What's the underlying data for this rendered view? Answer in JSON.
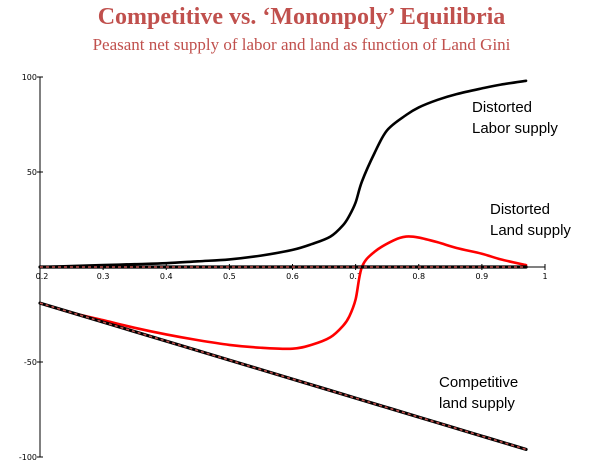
{
  "chart_data": {
    "type": "line",
    "title": "Competitive vs. ‘Mononpoly’ Equilibria",
    "subtitle": "Peasant net supply of labor and land as function of Land Gini",
    "xlabel": "",
    "ylabel": "",
    "xlim": [
      0.2,
      1.0
    ],
    "ylim": [
      -100,
      100
    ],
    "x_ticks": [
      "0.2",
      "0.3",
      "0.4",
      "0.5",
      "0.6",
      "0.7",
      "0.8",
      "0.9",
      "1"
    ],
    "y_ticks": [
      "100",
      "50",
      "-50",
      "-100"
    ],
    "grid": false,
    "legend": "none",
    "series": [
      {
        "id": "distorted-labor",
        "color": "#000000",
        "style": "solid",
        "x": [
          0.2,
          0.25,
          0.3,
          0.35,
          0.4,
          0.45,
          0.5,
          0.55,
          0.6,
          0.63,
          0.66,
          0.68,
          0.69,
          0.7,
          0.71,
          0.73,
          0.75,
          0.78,
          0.8,
          0.83,
          0.86,
          0.9,
          0.93,
          0.97
        ],
        "y": [
          0,
          0.5,
          1,
          1.5,
          2,
          3,
          4,
          6,
          9,
          12,
          16,
          22,
          27,
          34,
          45,
          60,
          72,
          80,
          84,
          88,
          91,
          94,
          96,
          98
        ]
      },
      {
        "id": "distorted-land",
        "color": "#FF0000",
        "style": "solid",
        "x": [
          0.2,
          0.25,
          0.3,
          0.35,
          0.4,
          0.45,
          0.5,
          0.55,
          0.6,
          0.63,
          0.66,
          0.68,
          0.69,
          0.7,
          0.71,
          0.73,
          0.76,
          0.78,
          0.8,
          0.83,
          0.86,
          0.9,
          0.93,
          0.97
        ],
        "y": [
          -19,
          -24,
          -28,
          -32,
          -35.5,
          -38.5,
          -41,
          -42.5,
          -43,
          -41,
          -37,
          -31,
          -26,
          -17,
          0,
          8,
          14,
          16,
          15.5,
          13,
          10,
          7,
          4,
          1
        ]
      },
      {
        "id": "competitive-land",
        "color": "#C0504D",
        "style": "dashed",
        "x": [
          0.2,
          0.3,
          0.4,
          0.5,
          0.6,
          0.7,
          0.8,
          0.9,
          0.97
        ],
        "y": [
          -19,
          -29,
          -39,
          -49,
          -59,
          -69,
          -79,
          -89,
          -96
        ]
      },
      {
        "id": "competitive-labor",
        "color": "#C0504D",
        "style": "dashed",
        "x": [
          0.2,
          0.97
        ],
        "y": [
          0,
          0
        ]
      }
    ],
    "annotations": [
      {
        "id": "labor",
        "lines": [
          "Distorted",
          "Labor supply"
        ]
      },
      {
        "id": "land",
        "lines": [
          "Distorted",
          "Land supply"
        ]
      },
      {
        "id": "competitive",
        "lines": [
          "Competitive",
          "land supply"
        ]
      }
    ]
  }
}
